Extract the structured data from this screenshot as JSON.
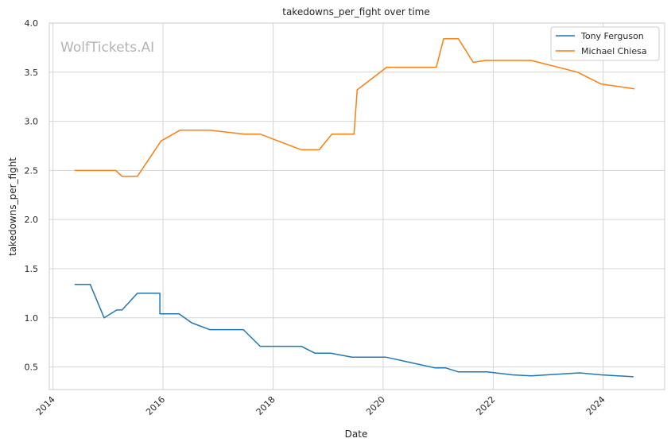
{
  "chart_data": {
    "type": "line",
    "title": "takedowns_per_fight over time",
    "xlabel": "Date",
    "ylabel": "takedowns_per_fight",
    "watermark": "WolfTickets.AI",
    "xlim": [
      "2013-12-07",
      "2025-02-12"
    ],
    "ylim": [
      0.27,
      4.0
    ],
    "xticks": [
      "2014",
      "2016",
      "2018",
      "2020",
      "2022",
      "2024"
    ],
    "yticks": [
      "0.5",
      "1.0",
      "1.5",
      "2.0",
      "2.5",
      "3.0",
      "3.5",
      "4.0"
    ],
    "grid": true,
    "legend_position": "top-right",
    "series": [
      {
        "name": "Tony Ferguson",
        "color": "#1f77b4",
        "points": [
          [
            "2014-05-24",
            1.34
          ],
          [
            "2014-09-05",
            1.34
          ],
          [
            "2014-12-06",
            1.0
          ],
          [
            "2015-02-28",
            1.08
          ],
          [
            "2015-04-04",
            1.08
          ],
          [
            "2015-07-15",
            1.25
          ],
          [
            "2015-12-11",
            1.25
          ],
          [
            "2015-12-11",
            1.04
          ],
          [
            "2016-04-16",
            1.04
          ],
          [
            "2016-07-09",
            0.95
          ],
          [
            "2016-11-05",
            0.88
          ],
          [
            "2017-06-17",
            0.88
          ],
          [
            "2017-10-07",
            0.71
          ],
          [
            "2018-07-07",
            0.71
          ],
          [
            "2018-10-06",
            0.64
          ],
          [
            "2019-01-19",
            0.64
          ],
          [
            "2019-06-08",
            0.6
          ],
          [
            "2020-01-18",
            0.6
          ],
          [
            "2020-12-12",
            0.49
          ],
          [
            "2021-02-20",
            0.49
          ],
          [
            "2021-05-15",
            0.45
          ],
          [
            "2021-11-20",
            0.45
          ],
          [
            "2022-05-07",
            0.42
          ],
          [
            "2022-09-10",
            0.41
          ],
          [
            "2023-07-29",
            0.44
          ],
          [
            "2023-12-16",
            0.42
          ],
          [
            "2024-07-20",
            0.4
          ]
        ]
      },
      {
        "name": "Michael Chiesa",
        "color": "#ff7f0e",
        "points": [
          [
            "2014-05-24",
            2.5
          ],
          [
            "2015-02-21",
            2.5
          ],
          [
            "2015-04-04",
            2.44
          ],
          [
            "2015-07-15",
            2.44
          ],
          [
            "2015-12-19",
            2.8
          ],
          [
            "2016-04-23",
            2.91
          ],
          [
            "2016-11-05",
            2.91
          ],
          [
            "2017-06-25",
            2.87
          ],
          [
            "2017-10-07",
            2.87
          ],
          [
            "2018-07-07",
            2.71
          ],
          [
            "2018-11-03",
            2.71
          ],
          [
            "2019-01-26",
            2.87
          ],
          [
            "2019-06-22",
            2.87
          ],
          [
            "2019-07-13",
            3.32
          ],
          [
            "2020-01-25",
            3.55
          ],
          [
            "2020-12-19",
            3.55
          ],
          [
            "2021-02-06",
            3.84
          ],
          [
            "2021-05-15",
            3.84
          ],
          [
            "2021-08-21",
            3.6
          ],
          [
            "2021-11-13",
            3.62
          ],
          [
            "2022-09-10",
            3.62
          ],
          [
            "2023-07-15",
            3.5
          ],
          [
            "2023-12-16",
            3.38
          ],
          [
            "2024-07-27",
            3.33
          ]
        ]
      }
    ]
  }
}
